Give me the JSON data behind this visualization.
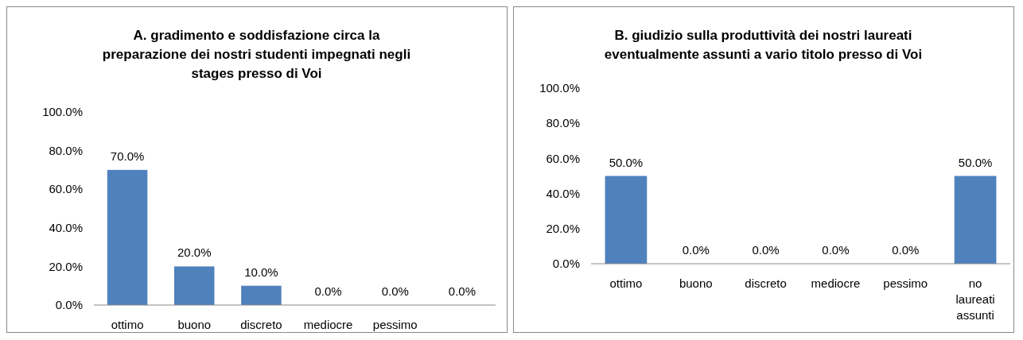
{
  "chart_data": [
    {
      "type": "bar",
      "title": "A.  gradimento e soddisfazione circa la\npreparazione dei nostri studenti impegnati negli\nstages presso di Voi",
      "categories": [
        "ottimo",
        "buono",
        "discreto",
        "mediocre",
        "pessimo",
        null
      ],
      "values": [
        70,
        20,
        10,
        0,
        0,
        0
      ],
      "value_labels": [
        "70.0%",
        "20.0%",
        "10.0%",
        "0.0%",
        "0.0%",
        "0.0%"
      ],
      "color": "#4f81bd",
      "ylim": [
        0,
        100
      ],
      "yticks": [
        {
          "value": 0,
          "label": "0.0%"
        },
        {
          "value": 20,
          "label": "20.0%"
        },
        {
          "value": 40,
          "label": "40.0%"
        },
        {
          "value": 60,
          "label": "60.0%"
        },
        {
          "value": 80,
          "label": "80.0%"
        },
        {
          "value": 100,
          "label": "100.0%"
        }
      ]
    },
    {
      "type": "bar",
      "title": "B. giudizio sulla produttività dei nostri laureati\neventualmente assunti a vario titolo presso di Voi",
      "categories": [
        "ottimo",
        "buono",
        "discreto",
        "mediocre",
        "pessimo",
        "no laureati assunti"
      ],
      "values": [
        50,
        0,
        0,
        0,
        0,
        50
      ],
      "value_labels": [
        "50.0%",
        "0.0%",
        "0.0%",
        "0.0%",
        "0.0%",
        "50.0%"
      ],
      "color": "#4f81bd",
      "ylim": [
        0,
        100
      ],
      "yticks": [
        {
          "value": 0,
          "label": "0.0%"
        },
        {
          "value": 20,
          "label": "20.0%"
        },
        {
          "value": 40,
          "label": "40.0%"
        },
        {
          "value": 60,
          "label": "60.0%"
        },
        {
          "value": 80,
          "label": "80.0%"
        },
        {
          "value": 100,
          "label": "100.0%"
        }
      ]
    }
  ]
}
